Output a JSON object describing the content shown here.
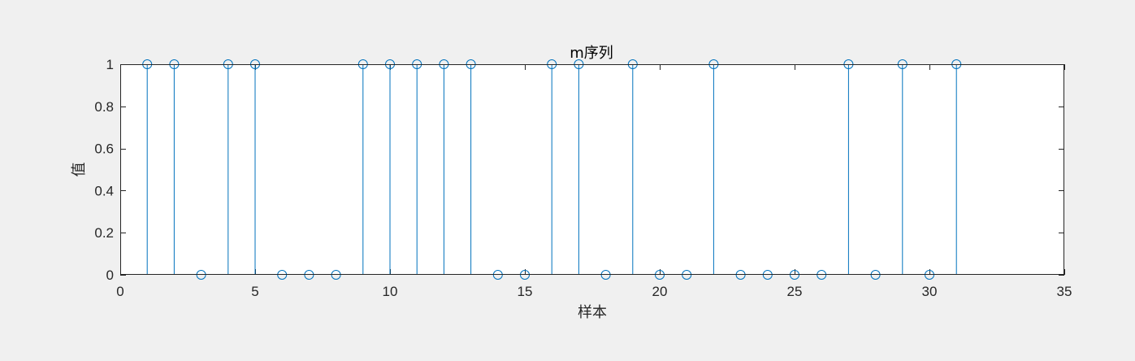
{
  "chart_data": {
    "type": "stem",
    "title": "m序列",
    "xlabel": "样本",
    "ylabel": "值",
    "xlim": [
      0,
      35
    ],
    "ylim": [
      0,
      1
    ],
    "xticks": [
      "0",
      "5",
      "10",
      "15",
      "20",
      "25",
      "30",
      "35"
    ],
    "yticks": [
      "0",
      "0.2",
      "0.4",
      "0.6",
      "0.8",
      "1"
    ],
    "grid": false,
    "series": [
      {
        "x": [
          1,
          2,
          3,
          4,
          5,
          6,
          7,
          8,
          9,
          10,
          11,
          12,
          13,
          14,
          15,
          16,
          17,
          18,
          19,
          20,
          21,
          22,
          23,
          24,
          25,
          26,
          27,
          28,
          29,
          30,
          31
        ],
        "values": [
          1,
          1,
          0,
          1,
          1,
          0,
          0,
          0,
          1,
          1,
          1,
          1,
          1,
          0,
          0,
          1,
          1,
          0,
          1,
          0,
          0,
          1,
          0,
          0,
          0,
          0,
          1,
          0,
          1,
          0,
          1
        ]
      }
    ],
    "colors": {
      "series": "#0072bd",
      "axes": "#262626",
      "plot_bg": "#ffffff",
      "figure_bg": "#f0f0f0"
    }
  }
}
